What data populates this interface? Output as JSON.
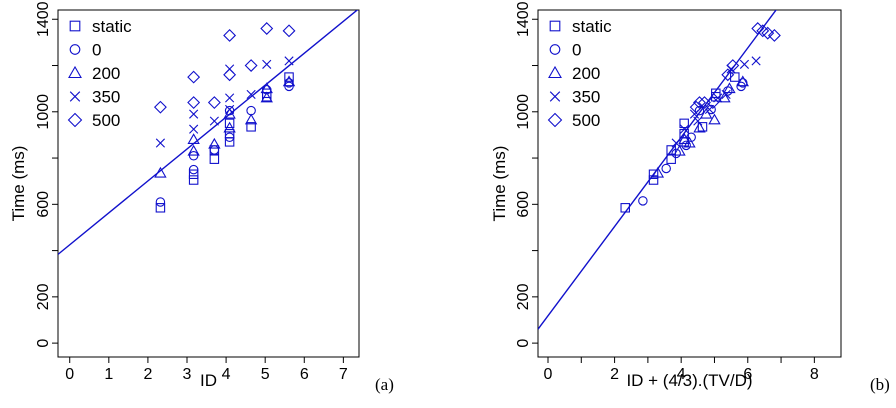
{
  "chart_data": [
    {
      "type": "scatter",
      "panel_label": "(a)",
      "xlabel": "ID",
      "ylabel": "Time (ms)",
      "xlim": [
        -0.3,
        7.4
      ],
      "ylim": [
        -60,
        1440
      ],
      "xticks": [
        0,
        1,
        2,
        3,
        4,
        5,
        6,
        7
      ],
      "yticks": [
        0,
        200,
        600,
        1000,
        1400
      ],
      "y_minor_ticks": [
        400,
        800,
        1200
      ],
      "legend_position": "top-left",
      "color": "#1111cc",
      "series": [
        {
          "name": "static",
          "marker": "square",
          "points": [
            [
              2.32,
              585
            ],
            [
              3.17,
              705
            ],
            [
              3.17,
              730
            ],
            [
              3.7,
              795
            ],
            [
              3.7,
              835
            ],
            [
              4.09,
              870
            ],
            [
              4.09,
              905
            ],
            [
              4.09,
              950
            ],
            [
              4.64,
              935
            ],
            [
              5.04,
              1065
            ],
            [
              5.04,
              1080
            ],
            [
              5.61,
              1150
            ]
          ]
        },
        {
          "name": "0",
          "marker": "circle",
          "points": [
            [
              2.32,
              610
            ],
            [
              3.17,
              750
            ],
            [
              3.17,
              810
            ],
            [
              3.7,
              835
            ],
            [
              4.09,
              890
            ],
            [
              4.09,
              1005
            ],
            [
              4.64,
              1005
            ],
            [
              5.04,
              1095
            ],
            [
              5.61,
              1110
            ],
            [
              5.61,
              1125
            ]
          ]
        },
        {
          "name": "200",
          "marker": "triangle",
          "points": [
            [
              2.32,
              735
            ],
            [
              3.17,
              830
            ],
            [
              3.17,
              880
            ],
            [
              3.7,
              860
            ],
            [
              4.09,
              930
            ],
            [
              4.09,
              990
            ],
            [
              4.64,
              965
            ],
            [
              5.04,
              1060
            ],
            [
              5.04,
              1100
            ],
            [
              5.61,
              1130
            ]
          ]
        },
        {
          "name": "350",
          "marker": "x",
          "points": [
            [
              2.32,
              865
            ],
            [
              3.17,
              925
            ],
            [
              3.17,
              990
            ],
            [
              3.7,
              960
            ],
            [
              4.09,
              1010
            ],
            [
              4.09,
              1060
            ],
            [
              4.09,
              1185
            ],
            [
              4.64,
              1075
            ],
            [
              5.04,
              1205
            ],
            [
              5.61,
              1220
            ]
          ]
        },
        {
          "name": "500",
          "marker": "diamond",
          "points": [
            [
              2.32,
              1020
            ],
            [
              3.17,
              1040
            ],
            [
              3.17,
              1150
            ],
            [
              3.7,
              1040
            ],
            [
              4.09,
              1160
            ],
            [
              4.09,
              1330
            ],
            [
              4.64,
              1200
            ],
            [
              5.04,
              1360
            ],
            [
              5.61,
              1350
            ]
          ]
        }
      ],
      "fit_line": {
        "intercept": 425,
        "slope": 138
      }
    },
    {
      "type": "scatter",
      "panel_label": "(b)",
      "xlabel": "ID + (4/3).(TV/D)",
      "ylabel": "Time (ms)",
      "xlim": [
        -0.3,
        8.8
      ],
      "ylim": [
        -60,
        1440
      ],
      "xticks": [
        0,
        2,
        4,
        6,
        8
      ],
      "x_minor_ticks": [
        1,
        3,
        5,
        7
      ],
      "yticks": [
        0,
        200,
        600,
        1000,
        1400
      ],
      "y_minor_ticks": [
        400,
        800,
        1200
      ],
      "legend_position": "top-left",
      "color": "#1111cc",
      "series": [
        {
          "name": "static",
          "marker": "square",
          "points": [
            [
              2.32,
              585
            ],
            [
              3.17,
              705
            ],
            [
              3.17,
              730
            ],
            [
              3.7,
              795
            ],
            [
              3.7,
              835
            ],
            [
              4.09,
              870
            ],
            [
              4.09,
              905
            ],
            [
              4.09,
              950
            ],
            [
              4.64,
              935
            ],
            [
              5.04,
              1065
            ],
            [
              5.04,
              1080
            ],
            [
              5.61,
              1150
            ]
          ]
        },
        {
          "name": "0",
          "marker": "circle",
          "points": [
            [
              2.85,
              615
            ],
            [
              3.55,
              755
            ],
            [
              3.85,
              820
            ],
            [
              4.15,
              855
            ],
            [
              4.3,
              890
            ],
            [
              4.55,
              1005
            ],
            [
              4.9,
              1010
            ],
            [
              5.4,
              1090
            ],
            [
              5.8,
              1110
            ],
            [
              5.85,
              1125
            ]
          ]
        },
        {
          "name": "200",
          "marker": "triangle",
          "points": [
            [
              3.3,
              735
            ],
            [
              3.95,
              830
            ],
            [
              4.1,
              880
            ],
            [
              4.25,
              865
            ],
            [
              4.55,
              930
            ],
            [
              4.75,
              990
            ],
            [
              5.0,
              965
            ],
            [
              5.3,
              1060
            ],
            [
              5.45,
              1100
            ],
            [
              5.85,
              1130
            ]
          ]
        },
        {
          "name": "350",
          "marker": "x",
          "points": [
            [
              3.85,
              865
            ],
            [
              4.1,
              925
            ],
            [
              4.4,
              990
            ],
            [
              4.5,
              960
            ],
            [
              4.85,
              1010
            ],
            [
              5.1,
              1060
            ],
            [
              5.5,
              1185
            ],
            [
              5.35,
              1075
            ],
            [
              5.9,
              1205
            ],
            [
              6.25,
              1220
            ]
          ]
        },
        {
          "name": "500",
          "marker": "diamond",
          "points": [
            [
              4.45,
              1020
            ],
            [
              4.55,
              1040
            ],
            [
              4.7,
              1040
            ],
            [
              4.95,
              1040
            ],
            [
              5.4,
              1160
            ],
            [
              5.55,
              1200
            ],
            [
              6.3,
              1360
            ],
            [
              6.45,
              1350
            ],
            [
              6.6,
              1340
            ],
            [
              6.8,
              1330
            ]
          ]
        }
      ],
      "fit_line": {
        "intercept": 118,
        "slope": 193
      }
    }
  ]
}
